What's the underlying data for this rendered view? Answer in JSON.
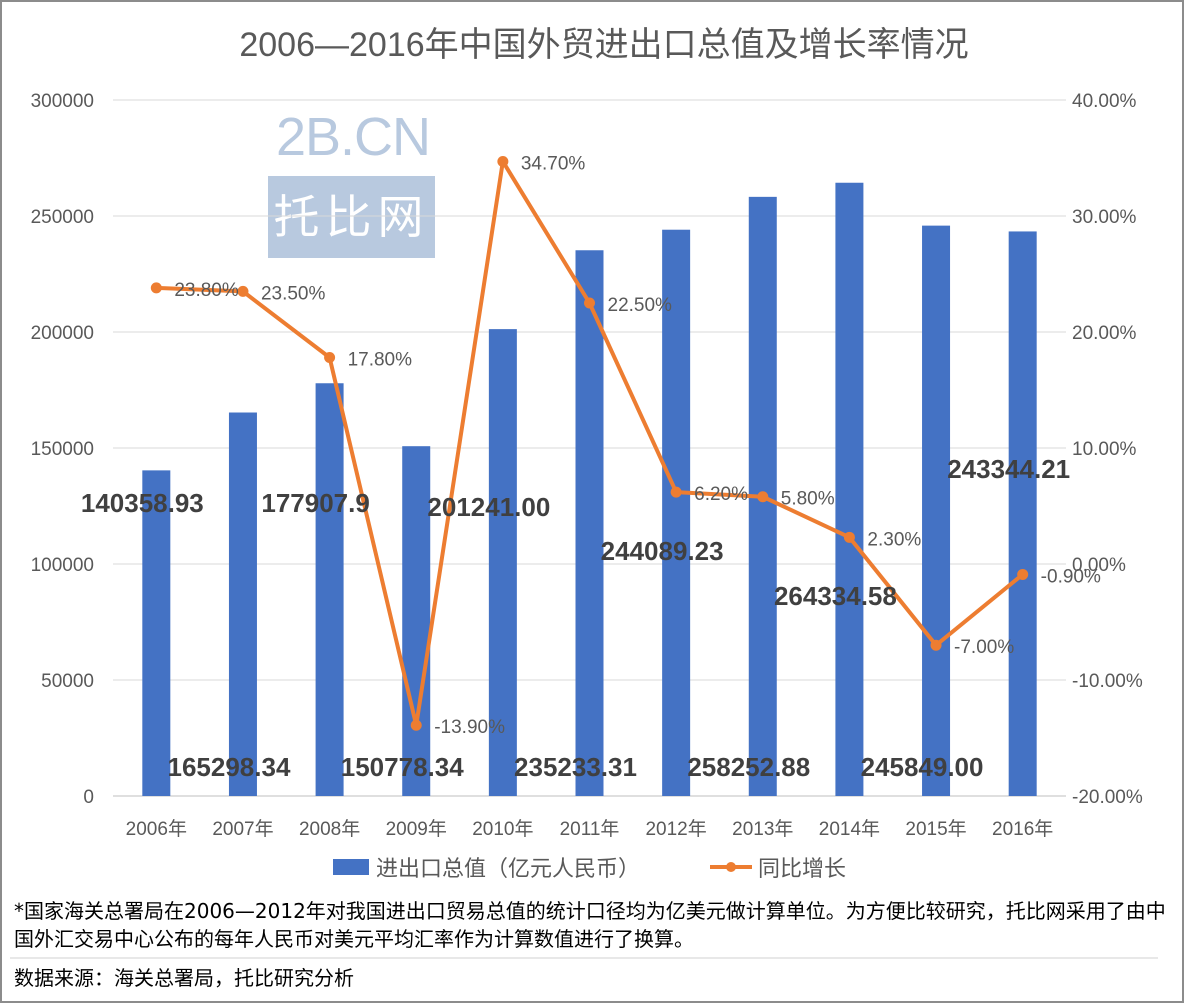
{
  "chart_data": {
    "type": "bar+line",
    "title": "2006—2016年中国外贸进出口总值及增长率情况",
    "categories": [
      "2006年",
      "2007年",
      "2008年",
      "2009年",
      "2010年",
      "2011年",
      "2012年",
      "2013年",
      "2014年",
      "2015年",
      "2016年"
    ],
    "series": [
      {
        "name": "进出口总值（亿元人民币）",
        "type": "bar",
        "axis": "left",
        "color": "#4472c4",
        "values": [
          140358.93,
          165298.34,
          177907.9,
          150778.34,
          201241.0,
          235233.31,
          244089.23,
          258252.88,
          264334.58,
          245849.0,
          243344.21
        ],
        "labels": [
          "140358.93",
          "165298.34",
          "177907.9",
          "150778.34",
          "201241.00",
          "235233.31",
          "244089.23",
          "258252.88",
          "264334.58",
          "245849.00",
          "243344.21"
        ]
      },
      {
        "name": "同比增长",
        "type": "line",
        "axis": "right",
        "color": "#ed7d31",
        "values": [
          23.8,
          23.5,
          17.8,
          -13.9,
          34.7,
          22.5,
          6.2,
          5.8,
          2.3,
          -7.0,
          -0.9
        ],
        "labels": [
          "23.80%",
          "23.50%",
          "17.80%",
          "-13.90%",
          "34.70%",
          "22.50%",
          "6.20%",
          "5.80%",
          "2.30%",
          "-7.00%",
          "-0.90%"
        ]
      }
    ],
    "left_axis": {
      "ylim": [
        0,
        300000
      ],
      "ticks": [
        "0",
        "50000",
        "100000",
        "150000",
        "200000",
        "250000",
        "300000"
      ]
    },
    "right_axis": {
      "ylim": [
        -20,
        40
      ],
      "ticks": [
        "-20.00%",
        "-10.00%",
        "0.00%",
        "10.00%",
        "20.00%",
        "30.00%",
        "40.00%"
      ]
    },
    "grid": true,
    "legend": "bottom"
  },
  "watermark": {
    "line1": "2B.CN",
    "line2": "托比网"
  },
  "footnote": "*国家海关总署局在2006—2012年对我国进出口贸易总值的统计口径均为亿美元做计算单位。为方便比较研究，托比网采用了由中国外汇交易中心公布的每年人民币对美元平均汇率作为计算数值进行了换算。",
  "source": "数据来源：海关总署局，托比研究分析"
}
